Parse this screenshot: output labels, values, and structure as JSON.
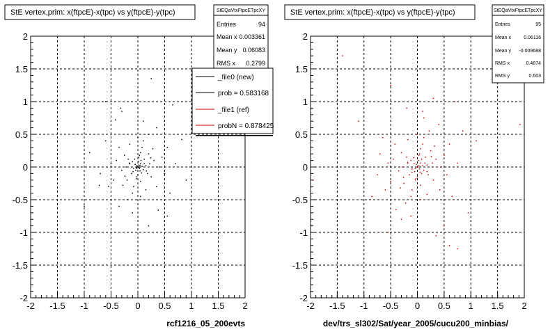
{
  "colors": {
    "series_new": "#000000",
    "series_ref": "#cc0000",
    "grid": "#000000",
    "frame": "#000000",
    "box_shadow": "#000000"
  },
  "footer_text": "",
  "chart_data": [
    {
      "type": "scatter",
      "title": "StE  vertex,prim: x(ftpcE)-x(tpc) vs y(ftpcE)-y(tpc)",
      "xlabel": "rcf1216_05_200evts",
      "ylabel": "",
      "xlim": [
        -2,
        2
      ],
      "ylim": [
        -2,
        2
      ],
      "xticks": [
        "-2",
        "-1.5",
        "-1",
        "-0.5",
        "0",
        "0.5",
        "1",
        "1.5",
        "2"
      ],
      "yticks": [
        "2",
        "1.5",
        "1",
        "0.5",
        "0",
        "-0.5",
        "-1",
        "-1.5",
        "-2"
      ],
      "grid": true,
      "stats": {
        "name": "StEQaVtxFtpcETpcXY",
        "rows": [
          {
            "label": "Entries",
            "value": "94"
          },
          {
            "label": "Mean x",
            "value": "0.003361"
          },
          {
            "label": "Mean y",
            "value": "0.06083"
          },
          {
            "label": "RMS x",
            "value": "0.2799"
          }
        ]
      },
      "legend": [
        {
          "label": "_file0 (new)",
          "color": "#000000"
        },
        {
          "label": "prob = 0.583168",
          "color": "#000000"
        },
        {
          "label": "_file1 (ref)",
          "color": "#cc0000"
        },
        {
          "label": "probN = 0.878425",
          "color": "#cc0000"
        }
      ],
      "series": [
        {
          "color": "#000000",
          "points": [
            [
              0.0,
              0.0
            ],
            [
              0.02,
              0.03
            ],
            [
              -0.02,
              0.02
            ],
            [
              0.03,
              -0.02
            ],
            [
              -0.03,
              -0.01
            ],
            [
              0.05,
              0.05
            ],
            [
              -0.05,
              0.04
            ],
            [
              0.01,
              0.08
            ],
            [
              0.08,
              0.01
            ],
            [
              -0.08,
              -0.02
            ],
            [
              0.04,
              -0.06
            ],
            [
              -0.04,
              -0.05
            ],
            [
              0.06,
              0.1
            ],
            [
              -0.1,
              0.08
            ],
            [
              0.1,
              -0.04
            ],
            [
              0.12,
              0.12
            ],
            [
              -0.12,
              -0.1
            ],
            [
              0.0,
              -0.12
            ],
            [
              0.15,
              0.02
            ],
            [
              -0.15,
              0.05
            ],
            [
              0.02,
              0.15
            ],
            [
              -0.02,
              -0.15
            ],
            [
              0.18,
              -0.1
            ],
            [
              -0.18,
              0.12
            ],
            [
              0.2,
              0.2
            ],
            [
              -0.2,
              -0.2
            ],
            [
              0.22,
              0.05
            ],
            [
              -0.22,
              0.0
            ],
            [
              0.05,
              0.22
            ],
            [
              0.05,
              -0.22
            ],
            [
              0.25,
              -0.15
            ],
            [
              -0.25,
              0.18
            ],
            [
              0.08,
              0.3
            ],
            [
              -0.08,
              -0.3
            ],
            [
              0.3,
              0.1
            ],
            [
              -0.3,
              -0.05
            ],
            [
              0.35,
              -0.3
            ],
            [
              -0.35,
              0.3
            ],
            [
              0.1,
              0.4
            ],
            [
              -0.1,
              -0.4
            ],
            [
              0.4,
              0.0
            ],
            [
              -0.4,
              0.1
            ],
            [
              0.15,
              -0.35
            ],
            [
              -0.15,
              0.35
            ],
            [
              0.28,
              0.28
            ],
            [
              -0.28,
              -0.28
            ],
            [
              0.45,
              0.15
            ],
            [
              -0.45,
              -0.2
            ],
            [
              0.0,
              0.45
            ],
            [
              0.05,
              -0.45
            ],
            [
              0.5,
              -0.1
            ],
            [
              -0.5,
              0.05
            ],
            [
              0.2,
              0.5
            ],
            [
              -0.2,
              -0.5
            ],
            [
              0.55,
              0.3
            ],
            [
              -0.55,
              -0.3
            ],
            [
              0.6,
              -0.4
            ],
            [
              -0.6,
              0.4
            ],
            [
              0.35,
              0.6
            ],
            [
              -0.35,
              -0.6
            ],
            [
              0.7,
              0.05
            ],
            [
              -0.7,
              -0.1
            ],
            [
              0.1,
              0.7
            ],
            [
              -0.1,
              -0.7
            ],
            [
              0.12,
              0.05
            ],
            [
              -0.06,
              0.12
            ],
            [
              0.07,
              -0.09
            ],
            [
              -0.09,
              -0.07
            ],
            [
              0.03,
              0.18
            ],
            [
              -0.03,
              -0.18
            ],
            [
              0.16,
              -0.06
            ],
            [
              -0.16,
              0.06
            ],
            [
              0.24,
              0.14
            ],
            [
              -0.24,
              -0.14
            ],
            [
              0.01,
              0.0
            ],
            [
              -0.01,
              0.01
            ],
            [
              0.0,
              0.01
            ],
            [
              0.02,
              -0.01
            ],
            [
              -0.02,
              -0.02
            ],
            [
              0.04,
              0.02
            ],
            [
              -0.42,
              0.72
            ],
            [
              0.38,
              -0.66
            ],
            [
              -0.72,
              -0.28
            ],
            [
              0.82,
              0.42
            ],
            [
              -0.32,
              0.9
            ],
            [
              0.2,
              -0.9
            ],
            [
              0.9,
              -0.2
            ],
            [
              -0.9,
              0.22
            ],
            [
              -0.3,
              0.85
            ],
            [
              0.65,
              0.95
            ],
            [
              -1.0,
              -0.6
            ],
            [
              0.55,
              -0.75
            ],
            [
              -0.6,
              1.0
            ],
            [
              0.25,
              1.35
            ]
          ]
        }
      ]
    },
    {
      "type": "scatter",
      "title": "StE  vertex,prim: x(ftpcE)-x(tpc) vs y(ftpcE)-y(tpc)",
      "xlabel": "dev/trs_sl302/Sat/year_2005/cucu200_minbias/",
      "ylabel": "",
      "xlim": [
        -2,
        2
      ],
      "ylim": [
        -2,
        2
      ],
      "xticks": [
        "-2",
        "-1.5",
        "-1",
        "-0.5",
        "0",
        "0.5",
        "1",
        "1.5",
        "2"
      ],
      "yticks": [
        "2",
        "1.5",
        "1",
        "0.5",
        "0",
        "-0.5",
        "-1",
        "-1.5",
        "-2"
      ],
      "grid": true,
      "stats": {
        "name": "StEQaVtxFtpcETpcXY",
        "rows": [
          {
            "label": "Entries",
            "value": "95"
          },
          {
            "label": "Mean x",
            "value": "0.06116"
          },
          {
            "label": "Mean y",
            "value": "-0.009688"
          },
          {
            "label": "RMS x",
            "value": "0.4874"
          },
          {
            "label": "RMS y",
            "value": "0.603"
          }
        ]
      },
      "series": [
        {
          "color": "#cc0000",
          "points": [
            [
              0.0,
              0.0
            ],
            [
              0.03,
              0.02
            ],
            [
              -0.02,
              0.04
            ],
            [
              0.04,
              -0.03
            ],
            [
              -0.04,
              -0.02
            ],
            [
              0.06,
              0.06
            ],
            [
              -0.06,
              0.05
            ],
            [
              0.02,
              0.1
            ],
            [
              0.1,
              0.02
            ],
            [
              -0.1,
              -0.03
            ],
            [
              0.05,
              -0.08
            ],
            [
              -0.05,
              -0.07
            ],
            [
              0.08,
              0.12
            ],
            [
              -0.12,
              0.1
            ],
            [
              0.12,
              -0.05
            ],
            [
              0.15,
              0.15
            ],
            [
              -0.15,
              -0.12
            ],
            [
              0.0,
              -0.15
            ],
            [
              0.18,
              0.03
            ],
            [
              -0.18,
              0.06
            ],
            [
              0.03,
              0.18
            ],
            [
              -0.03,
              -0.18
            ],
            [
              0.2,
              -0.12
            ],
            [
              -0.2,
              0.15
            ],
            [
              0.25,
              0.25
            ],
            [
              -0.25,
              -0.25
            ],
            [
              0.28,
              0.06
            ],
            [
              -0.28,
              0.0
            ],
            [
              0.06,
              0.28
            ],
            [
              0.06,
              -0.28
            ],
            [
              0.3,
              -0.2
            ],
            [
              -0.3,
              0.22
            ],
            [
              0.1,
              0.35
            ],
            [
              -0.1,
              -0.35
            ],
            [
              0.35,
              0.12
            ],
            [
              -0.35,
              -0.06
            ],
            [
              0.42,
              -0.35
            ],
            [
              -0.42,
              0.35
            ],
            [
              0.12,
              0.45
            ],
            [
              -0.12,
              -0.45
            ],
            [
              0.45,
              0.0
            ],
            [
              -0.45,
              0.12
            ],
            [
              0.18,
              -0.42
            ],
            [
              -0.18,
              0.42
            ],
            [
              0.32,
              0.32
            ],
            [
              -0.32,
              -0.32
            ],
            [
              0.5,
              0.18
            ],
            [
              -0.5,
              -0.22
            ],
            [
              0.0,
              0.5
            ],
            [
              0.06,
              -0.5
            ],
            [
              0.55,
              -0.12
            ],
            [
              -0.55,
              0.06
            ],
            [
              0.22,
              0.55
            ],
            [
              -0.22,
              -0.55
            ],
            [
              0.6,
              0.35
            ],
            [
              -0.6,
              -0.35
            ],
            [
              0.65,
              -0.45
            ],
            [
              -0.65,
              0.45
            ],
            [
              0.4,
              0.65
            ],
            [
              -0.4,
              -0.65
            ],
            [
              0.75,
              0.06
            ],
            [
              -0.75,
              -0.12
            ],
            [
              0.12,
              0.75
            ],
            [
              -0.12,
              -0.75
            ],
            [
              0.14,
              0.06
            ],
            [
              -0.07,
              0.14
            ],
            [
              0.08,
              -0.1
            ],
            [
              -0.1,
              -0.08
            ],
            [
              0.04,
              0.2
            ],
            [
              -0.04,
              -0.2
            ],
            [
              0.18,
              -0.07
            ],
            [
              -0.18,
              0.07
            ],
            [
              0.26,
              0.16
            ],
            [
              -0.26,
              -0.16
            ],
            [
              0.01,
              0.0
            ],
            [
              -1.4,
              1.7
            ],
            [
              -0.5,
              1.25
            ],
            [
              0.7,
              1.0
            ],
            [
              -0.2,
              0.9
            ],
            [
              0.1,
              0.85
            ],
            [
              -0.7,
              0.2
            ],
            [
              -0.3,
              -0.8
            ],
            [
              0.35,
              -1.05
            ],
            [
              0.75,
              -1.25
            ],
            [
              0.5,
              -0.9
            ],
            [
              1.92,
              0.65
            ],
            [
              -1.95,
              -0.2
            ],
            [
              0.95,
              -0.7
            ],
            [
              -0.85,
              -0.45
            ],
            [
              0.6,
              -1.2
            ],
            [
              1.1,
              0.4
            ],
            [
              -1.1,
              0.7
            ],
            [
              0.85,
              0.55
            ],
            [
              -0.55,
              -1.0
            ],
            [
              0.3,
              1.05
            ]
          ]
        }
      ]
    }
  ]
}
